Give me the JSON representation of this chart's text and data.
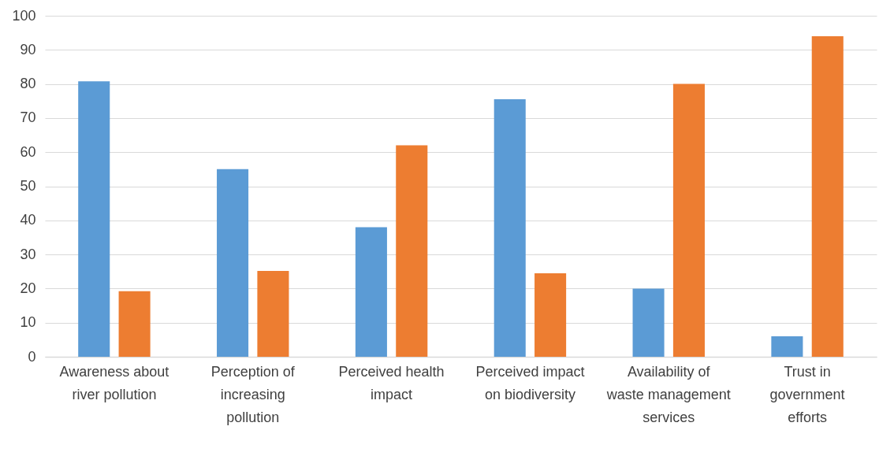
{
  "chart_data": {
    "type": "bar",
    "categories": [
      "Awareness about river pollution",
      "Perception of increasing pollution",
      "Perceived health impact",
      "Perceived impact on biodiversity",
      "Availability of waste management services",
      "Trust in government efforts"
    ],
    "series": [
      {
        "color": "#5b9bd5",
        "values": [
          80.8,
          55,
          38,
          75.5,
          20,
          6
        ]
      },
      {
        "color": "#ed7d31",
        "values": [
          19.2,
          25.2,
          62,
          24.5,
          80,
          94
        ]
      }
    ],
    "ylim": [
      0,
      100
    ],
    "yticks": [
      0,
      10,
      20,
      30,
      40,
      50,
      60,
      70,
      80,
      90,
      100
    ],
    "grid": "y"
  }
}
